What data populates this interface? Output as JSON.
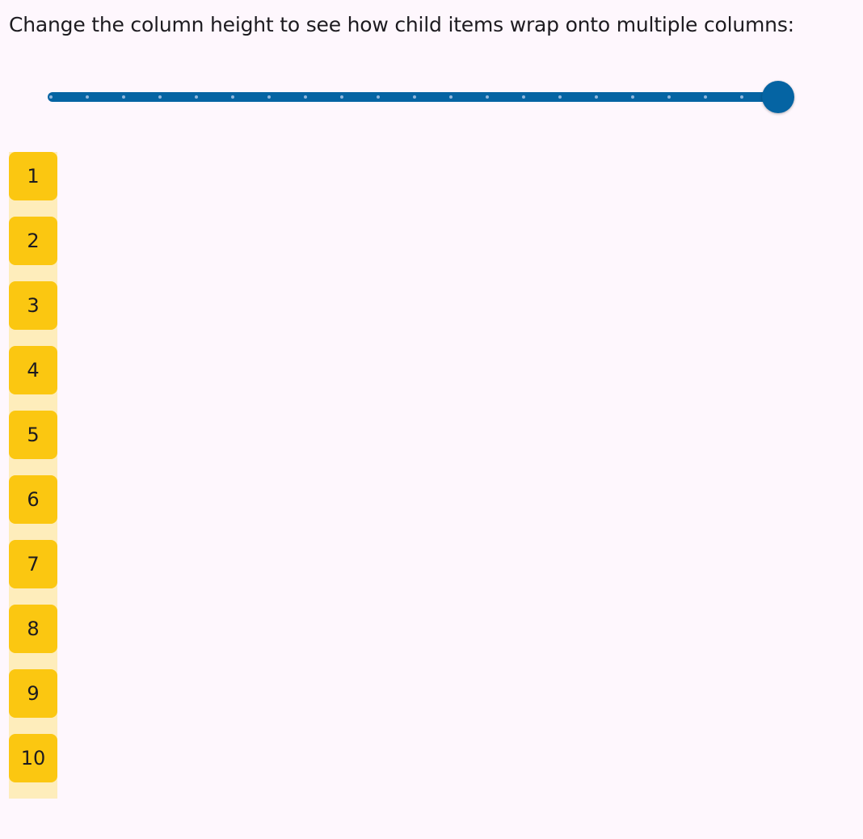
{
  "title": "Change the column height to see how child items wrap onto multiple columns:",
  "slider": {
    "value_fraction": 1.0,
    "divisions": 20,
    "color": "#0564a3"
  },
  "items": [
    "1",
    "2",
    "3",
    "4",
    "5",
    "6",
    "7",
    "8",
    "9",
    "10"
  ],
  "colors": {
    "item": "#fbc711",
    "column_bg": "#feedbb",
    "background": "#fef7fd"
  }
}
